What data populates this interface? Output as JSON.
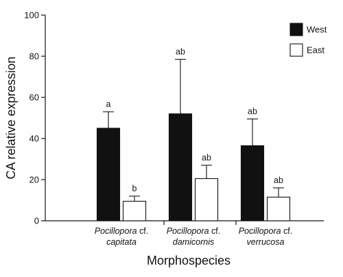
{
  "chart_data": {
    "type": "bar",
    "ylabel": "CA relative expression",
    "xlabel": "Morphospecies",
    "ylim": [
      0,
      100
    ],
    "yticks": [
      0,
      20,
      40,
      60,
      80,
      100
    ],
    "categories": [
      {
        "genus": "Pocillopora",
        "suffix": " cf.",
        "species": "capitata"
      },
      {
        "genus": "Pocillopora",
        "suffix": " cf.",
        "species": "damicornis"
      },
      {
        "genus": "Pocillopora",
        "suffix": " cf.",
        "species": "verrucosa"
      }
    ],
    "series": [
      {
        "name": "West",
        "color": "#111111",
        "values": [
          45,
          52,
          36.5
        ],
        "errors": [
          8,
          26.5,
          13
        ],
        "labels": [
          "a",
          "ab",
          "ab"
        ]
      },
      {
        "name": "East",
        "color": "#ffffff",
        "values": [
          9.5,
          20.5,
          11.5
        ],
        "errors": [
          2.5,
          6.5,
          4.5
        ],
        "labels": [
          "b",
          "ab",
          "ab"
        ]
      }
    ],
    "legend": "top-right",
    "grid": false
  }
}
